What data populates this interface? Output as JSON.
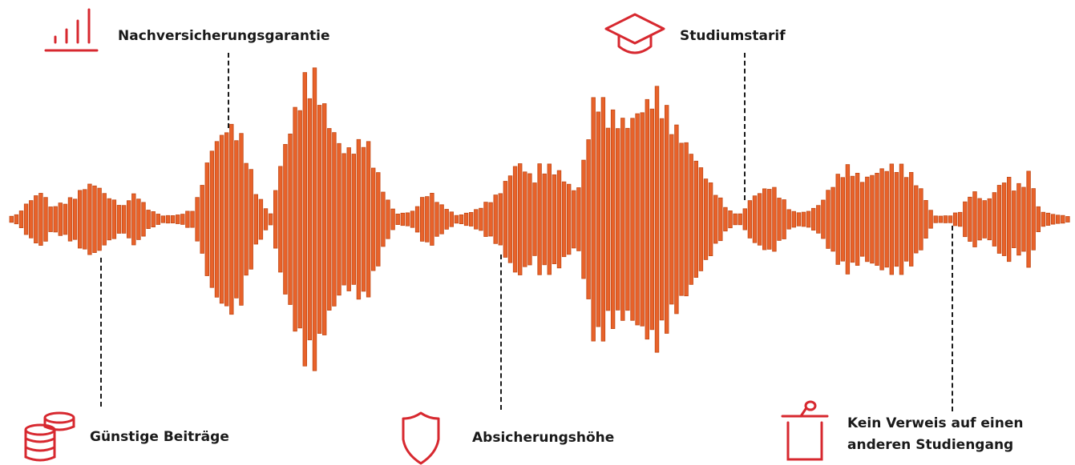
{
  "colors": {
    "bar_fill": "#e8622a",
    "bar_edge": "#c24a17",
    "icon_accent": "#d7282f",
    "text": "#1a1a1a",
    "connector": "#1a1a1a"
  },
  "features": [
    {
      "id": "nachversicherungsgarantie",
      "icon": "bar-chart-icon",
      "label": "Nachversicherungsgarantie"
    },
    {
      "id": "studiumstarif",
      "icon": "graduation-cap-icon",
      "label": "Studiumstarif"
    },
    {
      "id": "guenstige-beitraege",
      "icon": "coin-stack-icon",
      "label": "Günstige Beiträge"
    },
    {
      "id": "absicherungshoehe",
      "icon": "shield-icon",
      "label": "Absicherungshöhe"
    },
    {
      "id": "kein-verweis",
      "icon": "lectern-microphone-icon",
      "label_line1": "Kein Verweis auf einen",
      "label_line2": "anderen Studiengang"
    }
  ]
}
